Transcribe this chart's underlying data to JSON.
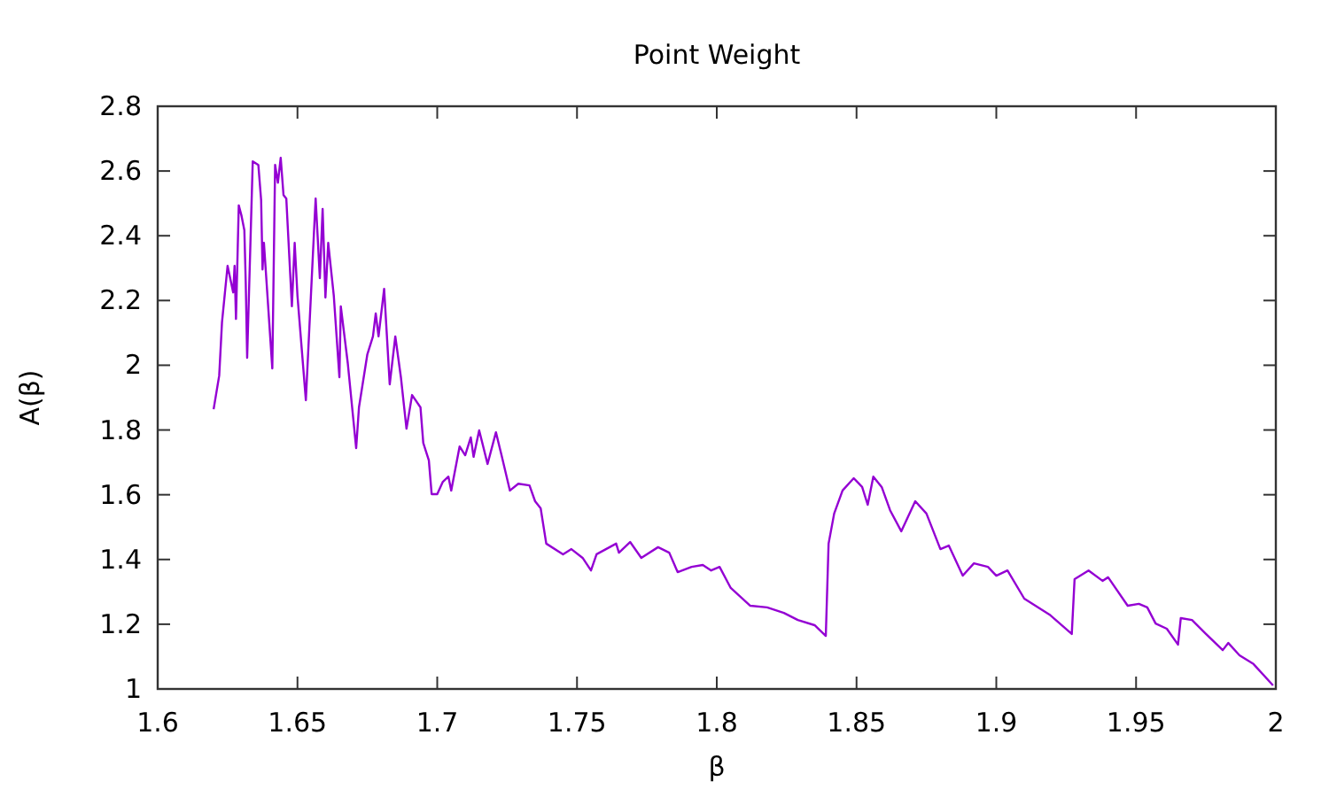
{
  "chart_data": {
    "type": "line",
    "title": "Point Weight",
    "xlabel": "β",
    "ylabel": "A(β)",
    "xlim": [
      1.6,
      2
    ],
    "ylim": [
      1,
      2.8
    ],
    "xticks": [
      {
        "value": 1.6,
        "label": "1.6"
      },
      {
        "value": 1.65,
        "label": "1.65"
      },
      {
        "value": 1.7,
        "label": "1.7"
      },
      {
        "value": 1.75,
        "label": "1.75"
      },
      {
        "value": 1.8,
        "label": "1.8"
      },
      {
        "value": 1.85,
        "label": "1.85"
      },
      {
        "value": 1.9,
        "label": "1.9"
      },
      {
        "value": 1.95,
        "label": "1.95"
      },
      {
        "value": 2,
        "label": "2"
      }
    ],
    "yticks": [
      1,
      1.2,
      1.4,
      1.6,
      1.8,
      2,
      2.2,
      2.4,
      2.6,
      2.8
    ],
    "grid": false,
    "marker": "none",
    "line_style": "solid",
    "series": [
      {
        "color": "#9400d3",
        "x": [
          1.62,
          1.622,
          1.623,
          1.625,
          1.627,
          1.6275,
          1.628,
          1.629,
          1.63,
          1.631,
          1.6315,
          1.632,
          1.634,
          1.636,
          1.637,
          1.6375,
          1.638,
          1.641,
          1.642,
          1.643,
          1.644,
          1.645,
          1.646,
          1.648,
          1.649,
          1.65,
          1.653,
          1.656,
          1.6565,
          1.658,
          1.659,
          1.66,
          1.661,
          1.663,
          1.665,
          1.6655,
          1.668,
          1.671,
          1.672,
          1.675,
          1.677,
          1.678,
          1.679,
          1.681,
          1.682,
          1.683,
          1.685,
          1.687,
          1.689,
          1.691,
          1.694,
          1.695,
          1.697,
          1.698,
          1.7,
          1.702,
          1.704,
          1.705,
          1.708,
          1.71,
          1.712,
          1.713,
          1.715,
          1.718,
          1.721,
          1.723,
          1.726,
          1.729,
          1.733,
          1.735,
          1.737,
          1.739,
          1.745,
          1.748,
          1.752,
          1.755,
          1.757,
          1.764,
          1.765,
          1.769,
          1.773,
          1.779,
          1.783,
          1.786,
          1.791,
          1.795,
          1.798,
          1.801,
          1.805,
          1.812,
          1.818,
          1.824,
          1.829,
          1.835,
          1.839,
          1.84,
          1.842,
          1.845,
          1.849,
          1.852,
          1.854,
          1.856,
          1.859,
          1.862,
          1.866,
          1.871,
          1.875,
          1.88,
          1.883,
          1.888,
          1.892,
          1.897,
          1.9,
          1.904,
          1.91,
          1.919,
          1.927,
          1.928,
          1.933,
          1.938,
          1.94,
          1.947,
          1.951,
          1.954,
          1.957,
          1.961,
          1.965,
          1.966,
          1.97,
          1.975,
          1.981,
          1.983,
          1.987,
          1.992,
          1.999
        ],
        "values": [
          1.864,
          1.968,
          2.133,
          2.307,
          2.225,
          2.307,
          2.143,
          2.494,
          2.461,
          2.417,
          2.253,
          2.023,
          2.63,
          2.619,
          2.51,
          2.296,
          2.378,
          1.99,
          2.619,
          2.564,
          2.641,
          2.526,
          2.515,
          2.182,
          2.378,
          2.214,
          1.892,
          2.428,
          2.515,
          2.269,
          2.483,
          2.209,
          2.378,
          2.214,
          1.963,
          2.182,
          2.006,
          1.744,
          1.87,
          2.034,
          2.089,
          2.16,
          2.089,
          2.236,
          2.089,
          1.941,
          2.089,
          1.963,
          1.804,
          1.908,
          1.87,
          1.76,
          1.706,
          1.602,
          1.602,
          1.64,
          1.656,
          1.613,
          1.749,
          1.722,
          1.777,
          1.717,
          1.799,
          1.695,
          1.793,
          1.722,
          1.613,
          1.634,
          1.629,
          1.58,
          1.558,
          1.449,
          1.416,
          1.432,
          1.405,
          1.366,
          1.416,
          1.449,
          1.421,
          1.454,
          1.405,
          1.438,
          1.421,
          1.361,
          1.377,
          1.383,
          1.366,
          1.377,
          1.312,
          1.257,
          1.252,
          1.235,
          1.213,
          1.197,
          1.164,
          1.449,
          1.542,
          1.613,
          1.651,
          1.624,
          1.569,
          1.656,
          1.624,
          1.552,
          1.487,
          1.58,
          1.542,
          1.432,
          1.443,
          1.35,
          1.388,
          1.377,
          1.35,
          1.366,
          1.279,
          1.23,
          1.17,
          1.339,
          1.366,
          1.334,
          1.345,
          1.257,
          1.263,
          1.252,
          1.202,
          1.186,
          1.137,
          1.219,
          1.213,
          1.17,
          1.12,
          1.142,
          1.104,
          1.077,
          1.011
        ]
      }
    ]
  }
}
